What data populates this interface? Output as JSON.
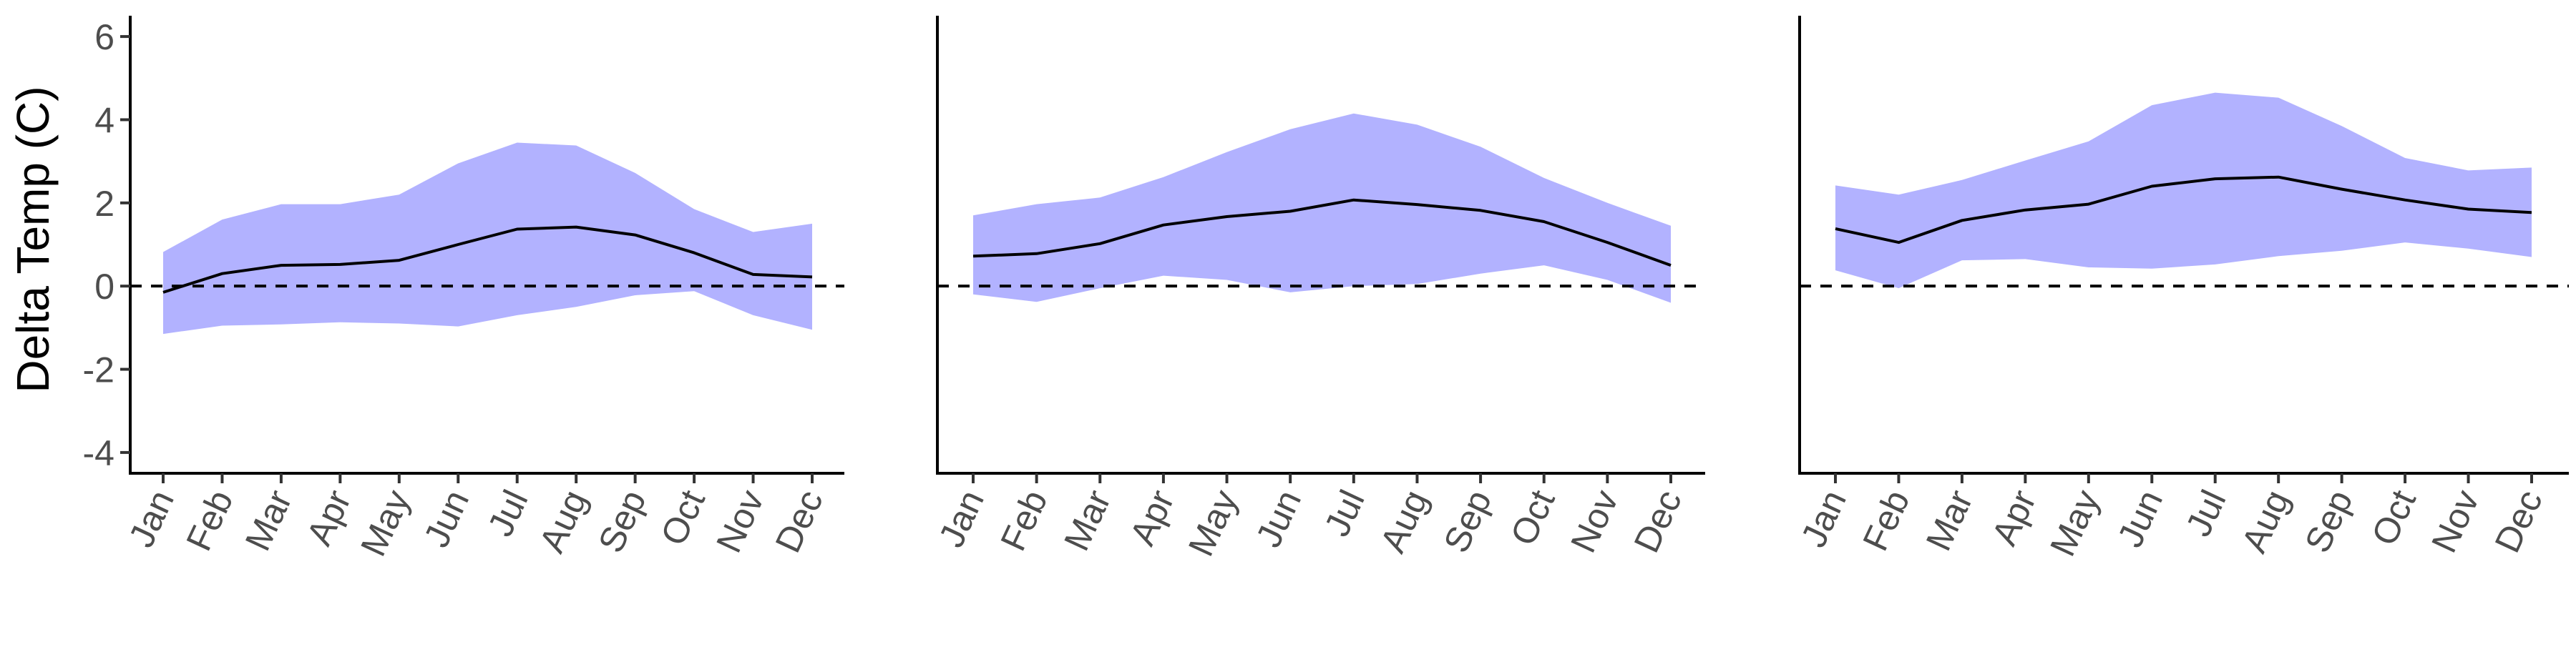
{
  "chart_data": [
    {
      "type": "area",
      "ylabel": "Delta Temp (C)",
      "ylim": [
        -4.5,
        6.5
      ],
      "yticks": [
        -4,
        -2,
        0,
        2,
        4,
        6
      ],
      "categories": [
        "Jan",
        "Feb",
        "Mar",
        "Apr",
        "May",
        "Jun",
        "Jul",
        "Aug",
        "Sep",
        "Oct",
        "Nov",
        "Dec"
      ],
      "mean": [
        -0.15,
        0.3,
        0.5,
        0.52,
        0.62,
        1.0,
        1.37,
        1.42,
        1.23,
        0.8,
        0.28,
        0.22
      ],
      "lower": [
        -1.15,
        -0.95,
        -0.92,
        -0.87,
        -0.9,
        -0.97,
        -0.7,
        -0.5,
        -0.22,
        -0.12,
        -0.7,
        -1.05
      ],
      "upper": [
        0.82,
        1.6,
        1.97,
        1.97,
        2.2,
        2.95,
        3.45,
        3.38,
        2.72,
        1.85,
        1.3,
        1.5
      ],
      "reference_line": 0,
      "grid": false
    },
    {
      "type": "area",
      "ylim": [
        -4.5,
        6.5
      ],
      "categories": [
        "Jan",
        "Feb",
        "Mar",
        "Apr",
        "May",
        "Jun",
        "Jul",
        "Aug",
        "Sep",
        "Oct",
        "Nov",
        "Dec"
      ],
      "mean": [
        0.72,
        0.78,
        1.02,
        1.47,
        1.67,
        1.8,
        2.07,
        1.96,
        1.82,
        1.55,
        1.05,
        0.5
      ],
      "lower": [
        -0.2,
        -0.38,
        -0.05,
        0.25,
        0.15,
        -0.15,
        0.0,
        0.05,
        0.3,
        0.5,
        0.15,
        -0.4
      ],
      "upper": [
        1.7,
        1.97,
        2.13,
        2.62,
        3.22,
        3.77,
        4.15,
        3.88,
        3.35,
        2.6,
        2.0,
        1.45
      ],
      "reference_line": 0,
      "grid": false
    },
    {
      "type": "area",
      "ylim": [
        -4.5,
        6.5
      ],
      "categories": [
        "Jan",
        "Feb",
        "Mar",
        "Apr",
        "May",
        "Jun",
        "Jul",
        "Aug",
        "Sep",
        "Oct",
        "Nov",
        "Dec"
      ],
      "mean": [
        1.38,
        1.05,
        1.58,
        1.83,
        1.97,
        2.4,
        2.58,
        2.62,
        2.33,
        2.07,
        1.85,
        1.77
      ],
      "lower": [
        0.38,
        -0.05,
        0.62,
        0.65,
        0.45,
        0.42,
        0.52,
        0.72,
        0.85,
        1.05,
        0.9,
        0.7
      ],
      "upper": [
        2.42,
        2.2,
        2.55,
        3.02,
        3.48,
        4.35,
        4.65,
        4.53,
        3.85,
        3.08,
        2.78,
        2.85
      ],
      "reference_line": 0,
      "grid": false
    }
  ],
  "colors": {
    "ribbon": "#b2b2ff",
    "mean_line": "#000000",
    "axis": "#000000",
    "tick_label": "#4d4d4d"
  }
}
